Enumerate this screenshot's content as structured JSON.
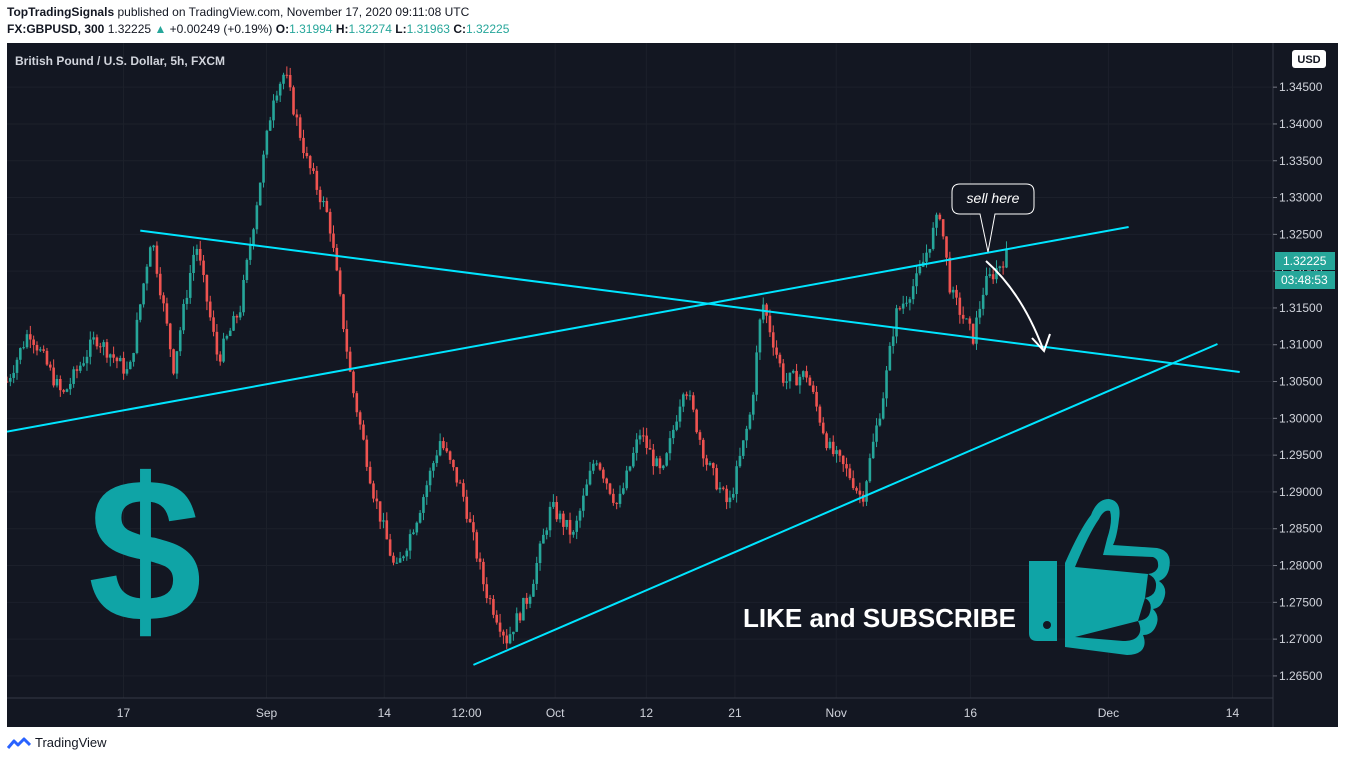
{
  "header": {
    "author": "TopTradingSignals",
    "published": "published on TradingView.com, November 17, 2020 09:11:08 UTC",
    "symbol": "FX:GBPUSD, 300",
    "last": "1.32225",
    "change_arrow": "▲",
    "change": "+0.00249 (+0.19%)",
    "o_label": "O:",
    "o_value": "1.31994",
    "h_label": "H:",
    "h_value": "1.32274",
    "l_label": "L:",
    "l_value": "1.31963",
    "c_label": "C:",
    "c_value": "1.32225"
  },
  "chart_data": {
    "type": "candlestick",
    "title": "British Pound / U.S. Dollar, 5h, FXCM",
    "currency": "USD",
    "last_price": "1.32225",
    "countdown": "03:48:53",
    "ylim": [
      1.262,
      1.351
    ],
    "y_ticks": [
      "1.26500",
      "1.27000",
      "1.27500",
      "1.28000",
      "1.28500",
      "1.29000",
      "1.29500",
      "1.30000",
      "1.30500",
      "1.31000",
      "1.31500",
      "1.32000",
      "1.32500",
      "1.33000",
      "1.33500",
      "1.34000",
      "1.34500"
    ],
    "x_ticks": [
      "17",
      "Sep",
      "14",
      "12:00",
      "Oct",
      "12",
      "21",
      "Nov",
      "16",
      "Dec",
      "14"
    ],
    "price_path": [
      {
        "x": 0,
        "y": 1.305
      },
      {
        "x": 2,
        "y": 1.312
      },
      {
        "x": 5,
        "y": 1.303
      },
      {
        "x": 8,
        "y": 1.311
      },
      {
        "x": 11,
        "y": 1.306
      },
      {
        "x": 13,
        "y": 1.325
      },
      {
        "x": 15,
        "y": 1.307
      },
      {
        "x": 17,
        "y": 1.324
      },
      {
        "x": 19,
        "y": 1.308
      },
      {
        "x": 21,
        "y": 1.315
      },
      {
        "x": 24,
        "y": 1.344
      },
      {
        "x": 25,
        "y": 1.347
      },
      {
        "x": 27,
        "y": 1.335
      },
      {
        "x": 29,
        "y": 1.327
      },
      {
        "x": 31,
        "y": 1.305
      },
      {
        "x": 33,
        "y": 1.29
      },
      {
        "x": 35,
        "y": 1.279
      },
      {
        "x": 37,
        "y": 1.287
      },
      {
        "x": 39,
        "y": 1.297
      },
      {
        "x": 41,
        "y": 1.29
      },
      {
        "x": 43,
        "y": 1.277
      },
      {
        "x": 45,
        "y": 1.27
      },
      {
        "x": 47,
        "y": 1.276
      },
      {
        "x": 49,
        "y": 1.288
      },
      {
        "x": 51,
        "y": 1.284
      },
      {
        "x": 53,
        "y": 1.295
      },
      {
        "x": 55,
        "y": 1.288
      },
      {
        "x": 57,
        "y": 1.298
      },
      {
        "x": 59,
        "y": 1.292
      },
      {
        "x": 61,
        "y": 1.305
      },
      {
        "x": 63,
        "y": 1.294
      },
      {
        "x": 65,
        "y": 1.288
      },
      {
        "x": 67,
        "y": 1.301
      },
      {
        "x": 68,
        "y": 1.316
      },
      {
        "x": 70,
        "y": 1.305
      },
      {
        "x": 72,
        "y": 1.306
      },
      {
        "x": 74,
        "y": 1.296
      },
      {
        "x": 76,
        "y": 1.292
      },
      {
        "x": 77,
        "y": 1.289
      },
      {
        "x": 79,
        "y": 1.304
      },
      {
        "x": 80,
        "y": 1.314
      },
      {
        "x": 82,
        "y": 1.319
      },
      {
        "x": 84,
        "y": 1.328
      },
      {
        "x": 85,
        "y": 1.317
      },
      {
        "x": 87,
        "y": 1.311
      },
      {
        "x": 88,
        "y": 1.318
      },
      {
        "x": 90,
        "y": 1.3222
      }
    ],
    "trendlines": [
      {
        "name": "descending",
        "x1": 12,
        "y1": 1.3255,
        "x2": 111,
        "y2": 1.3063
      },
      {
        "name": "ascending-upper",
        "x1": 0,
        "y1": 1.2982,
        "x2": 101,
        "y2": 1.326
      },
      {
        "name": "ascending-lower",
        "x1": 42,
        "y1": 1.2665,
        "x2": 109,
        "y2": 1.3101
      }
    ],
    "annotations": {
      "callout": "sell here",
      "cta": "LIKE and SUBSCRIBE",
      "dollar_glyph": "$"
    },
    "colors": {
      "up": "#26a69a",
      "down": "#ef5350",
      "trendline": "#00e5ff",
      "icon": "#0fa4a6",
      "background": "#131722"
    }
  },
  "footer": {
    "brand": "TradingView"
  }
}
